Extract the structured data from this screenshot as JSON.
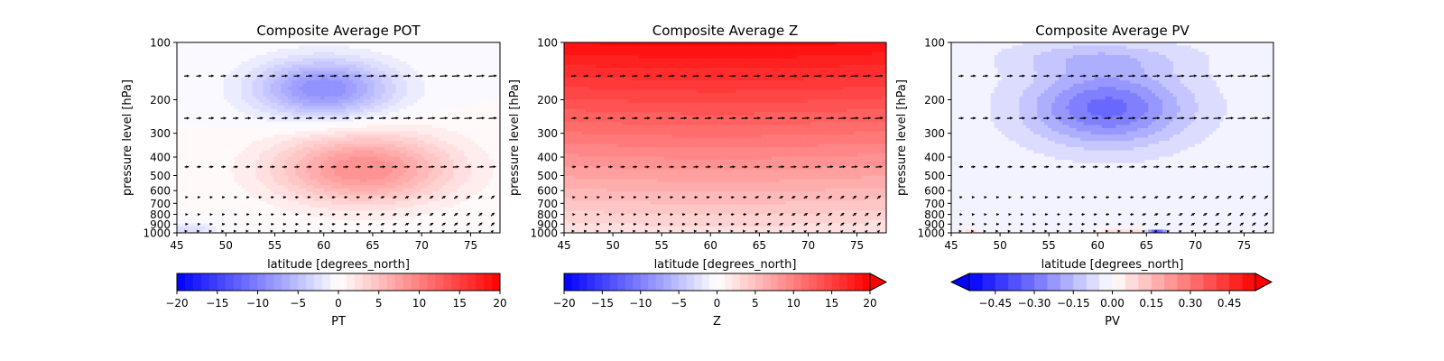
{
  "chart_data": [
    {
      "type": "heatmap",
      "title": "Composite Average POT",
      "xlabel": "latitude [degrees_north]",
      "ylabel": "pressure level [hPa]",
      "xlim": [
        45,
        78
      ],
      "ylim": [
        1000,
        100
      ],
      "y_scale": "log",
      "x_ticks": [
        45,
        50,
        55,
        60,
        65,
        70,
        75
      ],
      "y_ticks": [
        100,
        200,
        300,
        400,
        500,
        600,
        700,
        800,
        900,
        1000
      ],
      "field": {
        "blobs": [
          {
            "lat": 60,
            "plev": 175,
            "amp": -9,
            "sx": 7,
            "sy": 0.35
          },
          {
            "lat": 64,
            "plev": 460,
            "amp": 9,
            "sx": 9,
            "sy": 0.42
          },
          {
            "lat": 46,
            "plev": 960,
            "amp": -3,
            "sx": 3,
            "sy": 0.08
          }
        ],
        "bias": 0
      },
      "quiver": {
        "levels": [
          150,
          250,
          450,
          650,
          800,
          900,
          1000
        ],
        "u_by_level": [
          1.0,
          1.0,
          0.8,
          0.5,
          0.5,
          0.5,
          0.2
        ]
      },
      "colorbar": {
        "label": "PT",
        "min": -20,
        "max": 20,
        "ticks": [
          -20,
          -15,
          -10,
          -5,
          0,
          5,
          10,
          15,
          20
        ],
        "extend": "neither",
        "n_levels": 40
      }
    },
    {
      "type": "heatmap",
      "title": "Composite Average Z",
      "xlabel": "latitude [degrees_north]",
      "ylabel": "pressure level [hPa]",
      "xlim": [
        45,
        78
      ],
      "ylim": [
        1000,
        100
      ],
      "y_scale": "log",
      "x_ticks": [
        45,
        50,
        55,
        60,
        65,
        70,
        75
      ],
      "y_ticks": [
        100,
        200,
        300,
        400,
        500,
        600,
        700,
        800,
        900,
        1000
      ],
      "field": {
        "vertical_gradient": {
          "top_value": 19,
          "bottom_value": 2
        },
        "blobs": [],
        "bias": 0
      },
      "quiver": {
        "levels": [
          150,
          250,
          450,
          650,
          800,
          900,
          1000
        ],
        "u_by_level": [
          1.0,
          1.0,
          0.8,
          0.5,
          0.5,
          0.5,
          0.2
        ]
      },
      "colorbar": {
        "label": "Z",
        "min": -20,
        "max": 20,
        "ticks": [
          -20,
          -15,
          -10,
          -5,
          0,
          5,
          10,
          15,
          20
        ],
        "extend": "max",
        "n_levels": 40
      }
    },
    {
      "type": "heatmap",
      "title": "Composite Average PV",
      "xlabel": "latitude [degrees_north]",
      "ylabel": "pressure level [hPa]",
      "xlim": [
        45,
        78
      ],
      "ylim": [
        1000,
        100
      ],
      "y_scale": "log",
      "x_ticks": [
        45,
        50,
        55,
        60,
        65,
        70,
        75
      ],
      "y_ticks": [
        100,
        200,
        300,
        400,
        500,
        600,
        700,
        800,
        900,
        1000
      ],
      "field": {
        "blobs": [
          {
            "lat": 61,
            "plev": 220,
            "amp": -0.3,
            "sx": 8,
            "sy": 0.45
          },
          {
            "lat": 60,
            "plev": 120,
            "amp": -0.1,
            "sx": 9,
            "sy": 0.2
          },
          {
            "lat": 66,
            "plev": 990,
            "amp": -0.45,
            "sx": 1,
            "sy": 0.03
          },
          {
            "lat": 63,
            "plev": 990,
            "amp": 0.12,
            "sx": 3,
            "sy": 0.05
          },
          {
            "lat": 47,
            "plev": 990,
            "amp": 0.1,
            "sx": 1,
            "sy": 0.04
          }
        ],
        "bias": -0.02
      },
      "quiver": {
        "levels": [
          150,
          250,
          450,
          650,
          800,
          900,
          1000
        ],
        "u_by_level": [
          1.0,
          1.0,
          0.8,
          0.5,
          0.5,
          0.5,
          0.2
        ]
      },
      "colorbar": {
        "label": "PV",
        "min": -0.55,
        "max": 0.55,
        "ticks": [
          -0.45,
          -0.3,
          -0.15,
          0.0,
          0.15,
          0.3,
          0.45
        ],
        "tick_labels": [
          "−0.45",
          "−0.30",
          "−0.15",
          "0.00",
          "0.15",
          "0.30",
          "0.45"
        ],
        "extend": "both",
        "n_levels": 22
      }
    }
  ]
}
